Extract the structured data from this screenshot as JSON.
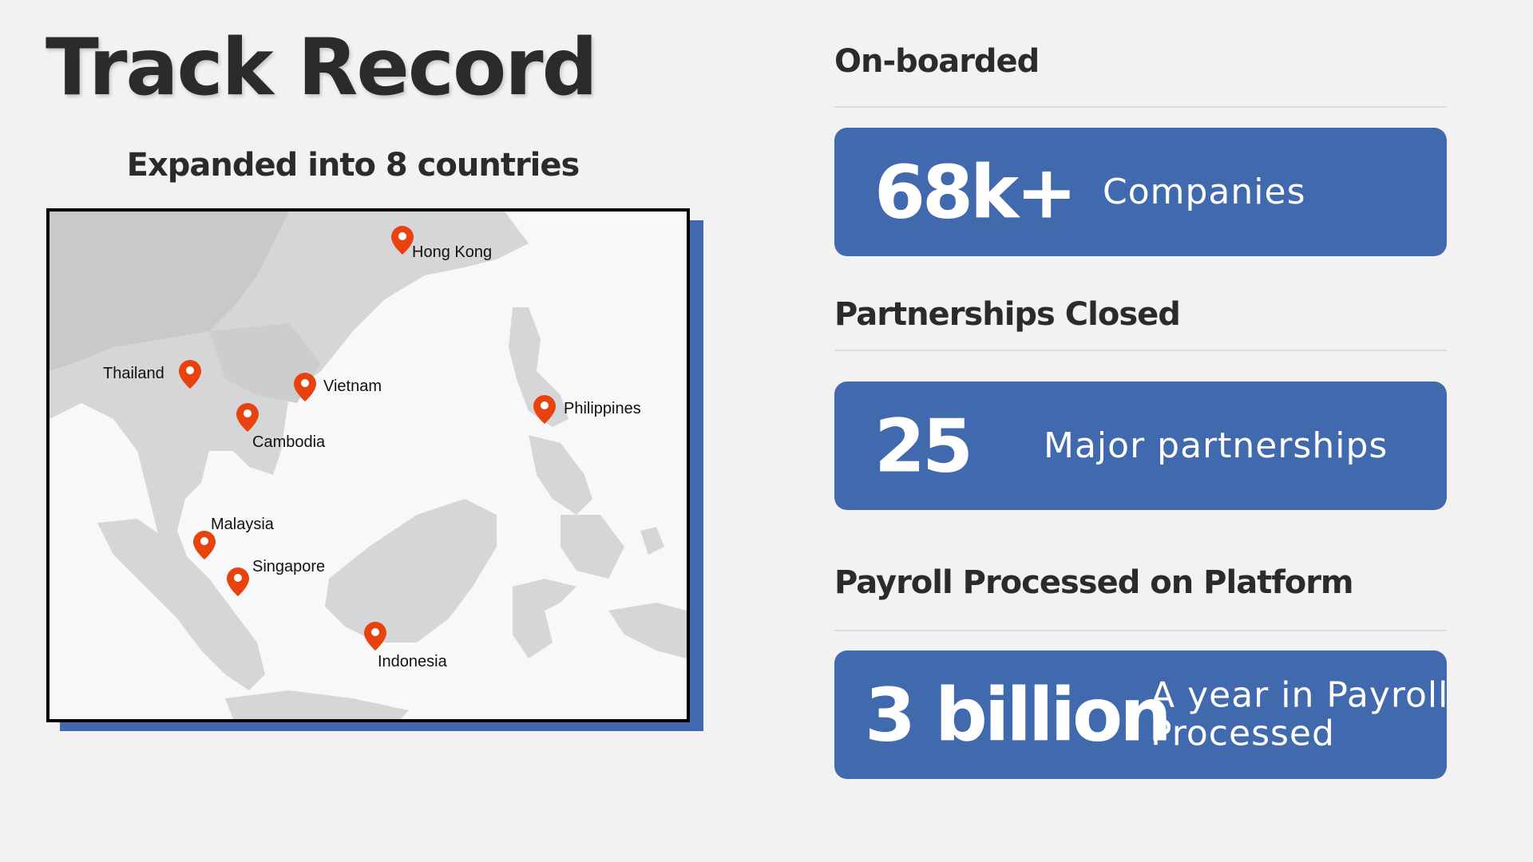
{
  "slide": {
    "title": "Track Record",
    "accent_color": "#4169ad",
    "pin_color": "#e8420e"
  },
  "map": {
    "heading": "Expanded into 8 countries",
    "pins": [
      {
        "name": "Hong Kong"
      },
      {
        "name": "Thailand"
      },
      {
        "name": "Vietnam"
      },
      {
        "name": "Cambodia"
      },
      {
        "name": "Philippines"
      },
      {
        "name": "Malaysia"
      },
      {
        "name": "Singapore"
      },
      {
        "name": "Indonesia"
      }
    ]
  },
  "stats": [
    {
      "heading": "On-boarded",
      "value": "68k+",
      "description": "Companies"
    },
    {
      "heading": "Partnerships Closed",
      "value": "25",
      "description": "Major partnerships"
    },
    {
      "heading": "Payroll Processed on Platform",
      "value": "3 billion",
      "description_line1": "A year in Payroll",
      "description_line2": "Processed"
    }
  ]
}
